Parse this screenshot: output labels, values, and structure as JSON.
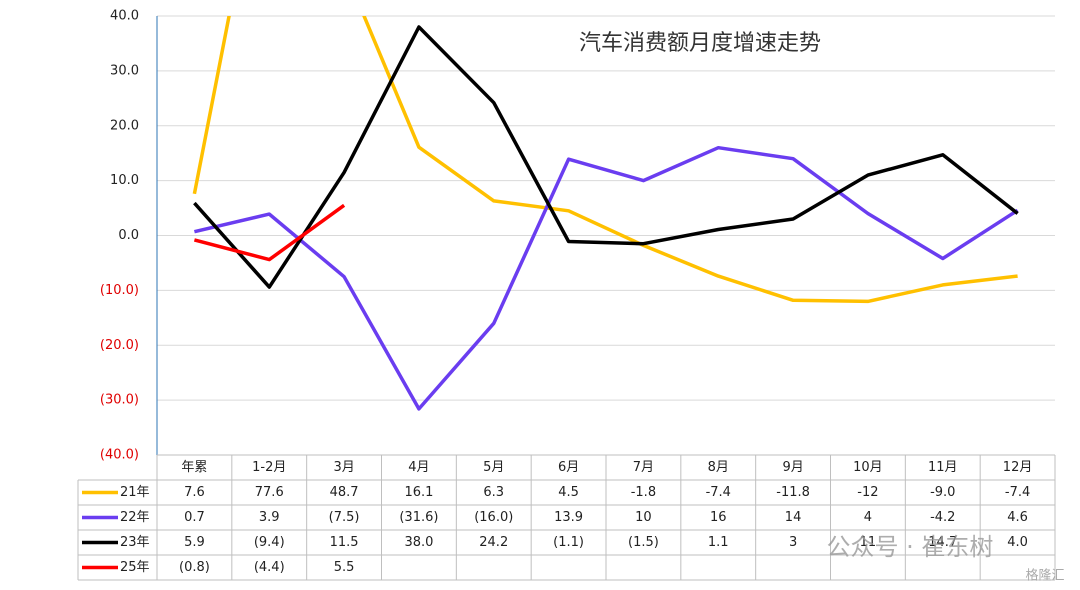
{
  "chart_data": {
    "type": "line",
    "title": "汽车消费额月度增速走势",
    "categories": [
      "年累",
      "1-2月",
      "3月",
      "4月",
      "5月",
      "6月",
      "7月",
      "8月",
      "9月",
      "10月",
      "11月",
      "12月"
    ],
    "series": [
      {
        "name": "21年",
        "color": "#ffc000",
        "values": [
          7.6,
          77.6,
          48.7,
          16.1,
          6.3,
          4.5,
          -1.8,
          -7.4,
          -11.8,
          -12,
          -9.0,
          -7.4
        ],
        "value_labels": [
          "7.6",
          "77.6",
          "48.7",
          "16.1",
          "6.3",
          "4.5",
          "-1.8",
          "-7.4",
          "-11.8",
          "-12",
          "-9.0",
          "-7.4"
        ]
      },
      {
        "name": "22年",
        "color": "#6a3df0",
        "values": [
          0.7,
          3.9,
          -7.5,
          -31.6,
          -16.0,
          13.9,
          10,
          16,
          14,
          4,
          -4.2,
          4.6
        ],
        "value_labels": [
          "0.7",
          "3.9",
          "(7.5)",
          "(31.6)",
          "(16.0)",
          "13.9",
          "10",
          "16",
          "14",
          "4",
          "-4.2",
          "4.6"
        ]
      },
      {
        "name": "23年",
        "color": "#000000",
        "values": [
          5.9,
          -9.4,
          11.5,
          38.0,
          24.2,
          -1.1,
          -1.5,
          1.1,
          3,
          11,
          14.7,
          4.0
        ],
        "value_labels": [
          "5.9",
          "(9.4)",
          "11.5",
          "38.0",
          "24.2",
          "(1.1)",
          "(1.5)",
          "1.1",
          "3",
          "11",
          "14.7",
          "4.0"
        ]
      },
      {
        "name": "25年",
        "color": "#ff0000",
        "values": [
          -0.8,
          -4.4,
          5.5,
          null,
          null,
          null,
          null,
          null,
          null,
          null,
          null,
          null
        ],
        "value_labels": [
          "(0.8)",
          "(4.4)",
          "5.5",
          null,
          null,
          null,
          null,
          null,
          null,
          null,
          null,
          null
        ]
      }
    ],
    "ylim": [
      -40,
      40
    ],
    "yticks": [
      {
        "value": 40,
        "label": "40.0"
      },
      {
        "value": 30,
        "label": "30.0"
      },
      {
        "value": 20,
        "label": "20.0"
      },
      {
        "value": 10,
        "label": "10.0"
      },
      {
        "value": 0,
        "label": "0.0"
      },
      {
        "value": -10,
        "label": "(10.0)"
      },
      {
        "value": -20,
        "label": "(20.0)"
      },
      {
        "value": -30,
        "label": "(30.0)"
      },
      {
        "value": -40,
        "label": "(40.0)"
      }
    ],
    "grid": true
  },
  "watermark": {
    "account": "公众号 · 崔东树",
    "logo": "格隆汇"
  }
}
